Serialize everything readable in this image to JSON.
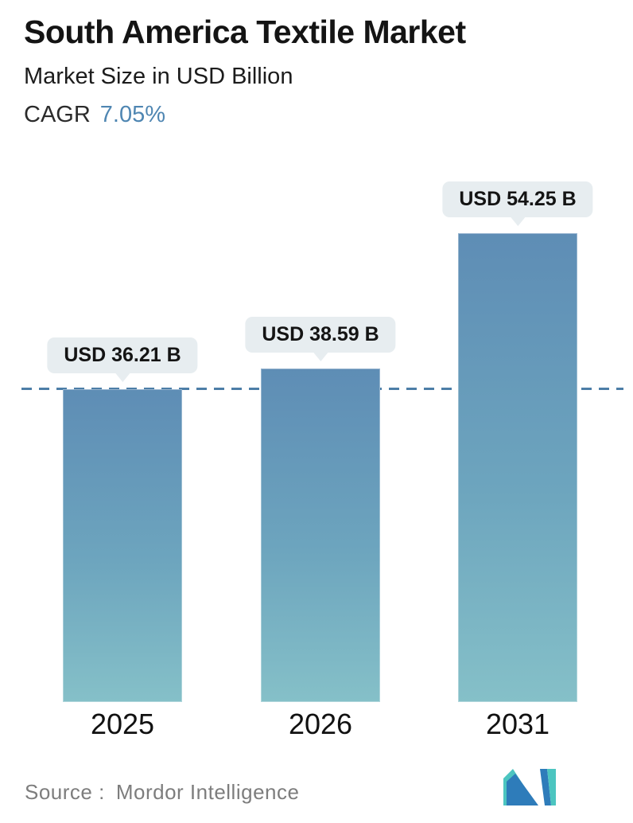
{
  "header": {
    "title": "South America Textile Market",
    "subtitle": "Market Size in USD Billion",
    "cagr_label": "CAGR",
    "cagr_value": "7.05%"
  },
  "chart_data": {
    "type": "bar",
    "title": "South America Textile Market",
    "subtitle": "Market Size in USD Billion",
    "unit": "USD Billion",
    "cagr": "7.05%",
    "categories": [
      "2025",
      "2026",
      "2031"
    ],
    "values": [
      36.21,
      38.59,
      54.25
    ],
    "value_labels": [
      "USD 36.21 B",
      "USD 38.59 B",
      "USD 54.25 B"
    ],
    "ylim": [
      0,
      56
    ],
    "grid": false,
    "legend": false,
    "baseline": {
      "value": 36.21,
      "style": "dashed",
      "note": "dashed reference line at 2025 market size"
    }
  },
  "footer": {
    "source_label": "Source :",
    "source_value": "Mordor Intelligence",
    "logo": "mordor-intelligence-logo"
  },
  "colors": {
    "bar_gradient_top": "#5e8db5",
    "bar_gradient_bottom": "#85c0c8",
    "dashed_line": "#4d7ea7",
    "cagr_value_blue": "#4f86b2",
    "label_pill_bg": "#e7edf0",
    "source_text": "#7d7d7d",
    "logo_blue": "#2e7cba",
    "logo_teal": "#4cc5c0"
  }
}
